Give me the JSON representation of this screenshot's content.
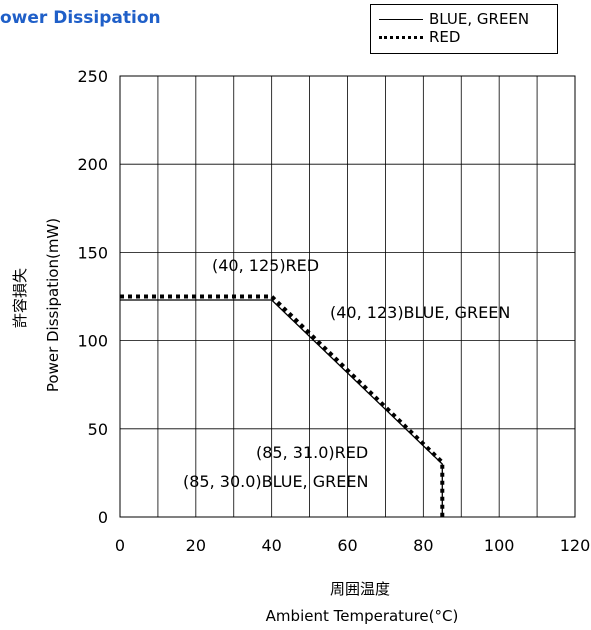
{
  "header": {
    "title": "ower Dissipation"
  },
  "legend": [
    {
      "label": "BLUE, GREEN",
      "style": "solid"
    },
    {
      "label": "RED",
      "style": "dotted"
    }
  ],
  "chart_data": {
    "type": "line",
    "ylabel_jp": "許容損失",
    "ylabel": "Power Dissipation(mW)",
    "xlabel_jp": "周囲温度",
    "xlabel": "Ambient Temperature(°C)",
    "xlim": [
      0,
      120
    ],
    "ylim": [
      0,
      250
    ],
    "xticks": [
      0,
      20,
      40,
      60,
      80,
      100,
      120
    ],
    "yticks": [
      0,
      50,
      100,
      150,
      200,
      250
    ],
    "grid": true,
    "legend_position": "top-right",
    "series": [
      {
        "name": "BLUE, GREEN",
        "style": "solid",
        "x": [
          0,
          40,
          85,
          85
        ],
        "y": [
          123,
          123,
          30,
          0
        ]
      },
      {
        "name": "RED",
        "style": "dotted",
        "x": [
          0,
          40,
          85,
          85
        ],
        "y": [
          125,
          125,
          31,
          0
        ]
      }
    ],
    "annotations": [
      {
        "text": "(40, 125)RED",
        "x": 40,
        "y": 125
      },
      {
        "text": "(40, 123)BLUE, GREEN",
        "x": 40,
        "y": 123
      },
      {
        "text": "(85, 31.0)RED",
        "x": 85,
        "y": 31
      },
      {
        "text": "(85, 30.0)BLUE, GREEN",
        "x": 85,
        "y": 30
      }
    ]
  }
}
